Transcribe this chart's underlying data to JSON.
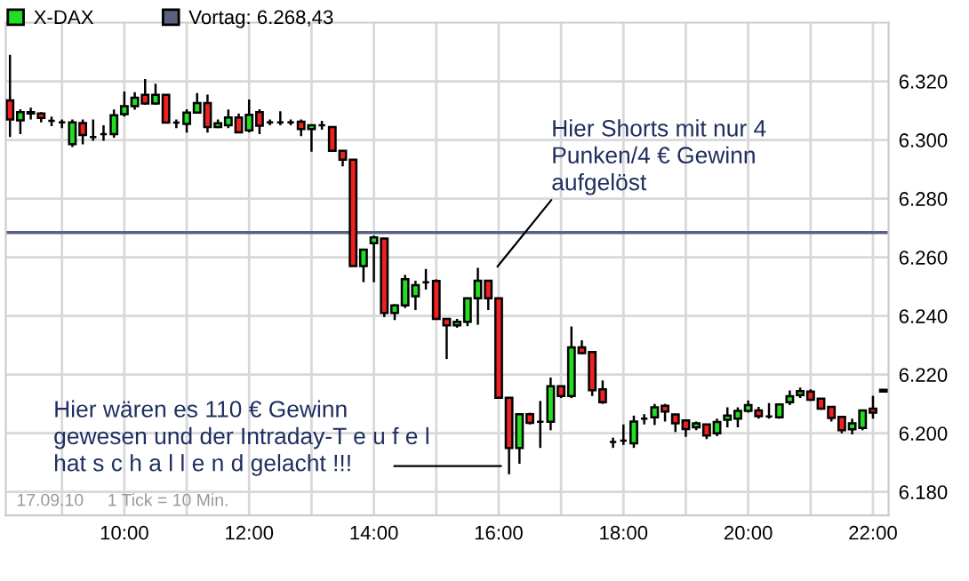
{
  "chart_data": {
    "type": "candlestick",
    "x": [
      8.1667,
      8.3333,
      8.5,
      8.6667,
      8.8333,
      9.0,
      9.1667,
      9.3333,
      9.5,
      9.6667,
      9.8333,
      10.0,
      10.1667,
      10.3333,
      10.5,
      10.6667,
      10.8333,
      11.0,
      11.1667,
      11.3333,
      11.5,
      11.6667,
      11.8333,
      12.0,
      12.1667,
      12.3333,
      12.5,
      12.6667,
      12.8333,
      13.0,
      13.1667,
      13.3333,
      13.5,
      13.6667,
      13.8333,
      14.0,
      14.1667,
      14.3333,
      14.5,
      14.6667,
      14.8333,
      15.0,
      15.1667,
      15.3333,
      15.5,
      15.6667,
      15.8333,
      16.0,
      16.1667,
      16.3333,
      16.5,
      16.6667,
      16.8333,
      17.0,
      17.1667,
      17.3333,
      17.5,
      17.6667,
      17.8333,
      18.0,
      18.1667,
      18.3333,
      18.5,
      18.6667,
      18.8333,
      19.0,
      19.1667,
      19.3333,
      19.5,
      19.6667,
      19.8333,
      20.0,
      20.1667,
      20.3333,
      20.5,
      20.6667,
      20.8333,
      21.0,
      21.1667,
      21.3333,
      21.5,
      21.6667,
      21.8333,
      22.0,
      22.1667
    ],
    "series": [
      {
        "name": "X-DAX",
        "color": "#22dd22",
        "ohlc": [
          [
            6313.5,
            6329,
            6301,
            6307
          ],
          [
            6306.7,
            6310.5,
            6302,
            6309.5
          ],
          [
            6309,
            6311,
            6307,
            6309.5
          ],
          [
            6309,
            6309.5,
            6306,
            6307.5
          ],
          [
            6306.5,
            6308,
            6304.7,
            6306.5
          ],
          [
            6306,
            6307,
            6304,
            6306
          ],
          [
            6298.6,
            6307,
            6297.6,
            6306
          ],
          [
            6305.8,
            6307,
            6298.5,
            6301.7
          ],
          [
            6301,
            6307,
            6299.7,
            6301
          ],
          [
            6302,
            6305,
            6299.7,
            6302
          ],
          [
            6302,
            6310.4,
            6300.8,
            6308.4
          ],
          [
            6308.8,
            6316.5,
            6308,
            6311.5
          ],
          [
            6311.5,
            6316.3,
            6310.3,
            6314.4
          ],
          [
            6315.4,
            6320.8,
            6312,
            6312.4
          ],
          [
            6312.4,
            6319.2,
            6312,
            6315.4
          ],
          [
            6315.4,
            6315.4,
            6305.9,
            6305.9
          ],
          [
            6305.9,
            6307,
            6304,
            6305.9
          ],
          [
            6305.5,
            6310.5,
            6302.5,
            6309.3
          ],
          [
            6309.3,
            6316,
            6309,
            6312.6
          ],
          [
            6312.6,
            6315.5,
            6302.5,
            6304.4
          ],
          [
            6304.4,
            6307,
            6304,
            6305.7
          ],
          [
            6305,
            6310.4,
            6304,
            6307.7
          ],
          [
            6307.7,
            6309,
            6302.4,
            6302.6
          ],
          [
            6303.3,
            6313.8,
            6302.6,
            6308.6
          ],
          [
            6309.5,
            6310.5,
            6302,
            6304.9
          ],
          [
            6306,
            6307,
            6305,
            6306
          ],
          [
            6306,
            6309.8,
            6305,
            6306
          ],
          [
            6306,
            6307,
            6305,
            6306
          ],
          [
            6306.2,
            6307,
            6301.3,
            6303.7
          ],
          [
            6303.7,
            6305,
            6296,
            6305
          ],
          [
            6305,
            6306.5,
            6303.5,
            6305
          ],
          [
            6304.4,
            6304.4,
            6296,
            6296.3
          ],
          [
            6296.3,
            6296.3,
            6291,
            6293.3
          ],
          [
            6293.3,
            6293.3,
            6257,
            6257
          ],
          [
            6257,
            6262.6,
            6251.5,
            6262.6
          ],
          [
            6264.8,
            6267.4,
            6251.5,
            6266.8
          ],
          [
            6266.4,
            6266.4,
            6239.6,
            6241
          ],
          [
            6241,
            6244,
            6238.6,
            6243.6
          ],
          [
            6243.6,
            6254,
            6242.7,
            6252.5
          ],
          [
            6246.7,
            6252,
            6242,
            6250.5
          ],
          [
            6251.5,
            6256,
            6249,
            6251.5
          ],
          [
            6251.9,
            6252.5,
            6239,
            6239
          ],
          [
            6239,
            6239,
            6225.3,
            6236.8
          ],
          [
            6236.8,
            6239,
            6236,
            6238
          ],
          [
            6238,
            6246,
            6236.5,
            6246
          ],
          [
            6246,
            6256.4,
            6237,
            6252
          ],
          [
            6252,
            6252,
            6242,
            6246
          ],
          [
            6246,
            6246,
            6212,
            6212.1
          ],
          [
            6212.1,
            6212.1,
            6186,
            6195
          ],
          [
            6195,
            6206.5,
            6189.6,
            6206.5
          ],
          [
            6206.5,
            6207,
            6203,
            6203.5
          ],
          [
            6203.9,
            6211,
            6195,
            6203.9
          ],
          [
            6203.9,
            6219,
            6201,
            6216
          ],
          [
            6216,
            6216,
            6212,
            6212.7
          ],
          [
            6212.7,
            6236.4,
            6212,
            6229.3
          ],
          [
            6229.3,
            6231.7,
            6227,
            6227.3
          ],
          [
            6227.7,
            6227.7,
            6212.7,
            6214.7
          ],
          [
            6215,
            6218,
            6210,
            6210.6
          ],
          [
            6197,
            6198.5,
            6195,
            6197
          ],
          [
            6197.5,
            6203,
            6196,
            6197.5
          ],
          [
            6196.6,
            6206,
            6195,
            6204
          ],
          [
            6205,
            6206.5,
            6203,
            6205
          ],
          [
            6205.4,
            6210,
            6202.8,
            6208.8
          ],
          [
            6209.4,
            6210,
            6204,
            6207.4
          ],
          [
            6206.4,
            6206.4,
            6200.4,
            6203.4
          ],
          [
            6204.4,
            6204.4,
            6198.8,
            6201.4
          ],
          [
            6202,
            6204,
            6201,
            6203.4
          ],
          [
            6203,
            6203,
            6198,
            6199.2
          ],
          [
            6200,
            6205,
            6199,
            6203.8
          ],
          [
            6204.6,
            6208.8,
            6202,
            6206
          ],
          [
            6205,
            6208.8,
            6202,
            6207.6
          ],
          [
            6207.6,
            6211.2,
            6207,
            6209.6
          ],
          [
            6207.8,
            6209,
            6205,
            6205.8
          ],
          [
            6205.7,
            6210.3,
            6205,
            6205.7
          ],
          [
            6205.4,
            6210,
            6205,
            6209.8
          ],
          [
            6210.6,
            6214.6,
            6209.6,
            6212.6
          ],
          [
            6213,
            6215.6,
            6212,
            6214.4
          ],
          [
            6214.2,
            6215,
            6211,
            6211.4
          ],
          [
            6211.8,
            6212,
            6208,
            6208.4
          ],
          [
            6209,
            6209,
            6204,
            6205.2
          ],
          [
            6205.6,
            6205.6,
            6200,
            6201
          ],
          [
            6201.3,
            6205,
            6199.6,
            6203.4
          ],
          [
            6201.8,
            6208,
            6201,
            6207.8
          ],
          [
            6208.4,
            6212.8,
            6205,
            6207
          ],
          [
            6214.2,
            6214.8,
            6214.2,
            6214.8
          ]
        ],
        "colors": [
          "#ee2222",
          "#22dd22",
          "#22dd22",
          "#ee2222",
          "#000000",
          "#000000",
          "#22dd22",
          "#ee2222",
          "#000000",
          "#000000",
          "#22dd22",
          "#22dd22",
          "#22dd22",
          "#ee2222",
          "#22dd22",
          "#ee2222",
          "#000000",
          "#22dd22",
          "#22dd22",
          "#ee2222",
          "#22dd22",
          "#22dd22",
          "#ee2222",
          "#22dd22",
          "#ee2222",
          "#000000",
          "#000000",
          "#000000",
          "#ee2222",
          "#22dd22",
          "#000000",
          "#ee2222",
          "#ee2222",
          "#ee2222",
          "#22dd22",
          "#22dd22",
          "#ee2222",
          "#22dd22",
          "#22dd22",
          "#22dd22",
          "#000000",
          "#ee2222",
          "#ee2222",
          "#22dd22",
          "#22dd22",
          "#22dd22",
          "#ee2222",
          "#ee2222",
          "#ee2222",
          "#22dd22",
          "#ee2222",
          "#000000",
          "#22dd22",
          "#ee2222",
          "#22dd22",
          "#ee2222",
          "#ee2222",
          "#ee2222",
          "#000000",
          "#000000",
          "#22dd22",
          "#000000",
          "#22dd22",
          "#ee2222",
          "#ee2222",
          "#ee2222",
          "#22dd22",
          "#ee2222",
          "#22dd22",
          "#22dd22",
          "#22dd22",
          "#22dd22",
          "#ee2222",
          "#000000",
          "#22dd22",
          "#22dd22",
          "#22dd22",
          "#ee2222",
          "#ee2222",
          "#ee2222",
          "#ee2222",
          "#22dd22",
          "#22dd22",
          "#ee2222",
          "#000000"
        ]
      }
    ],
    "xlim": [
      8.1,
      22.25
    ],
    "xticks": [
      {
        "value": 9,
        "label": null
      },
      {
        "value": 10,
        "label": "10:00"
      },
      {
        "value": 11,
        "label": null
      },
      {
        "value": 12,
        "label": "12:00"
      },
      {
        "value": 13,
        "label": null
      },
      {
        "value": 14,
        "label": "14:00"
      },
      {
        "value": 15,
        "label": null
      },
      {
        "value": 16,
        "label": "16:00"
      },
      {
        "value": 17,
        "label": null
      },
      {
        "value": 18,
        "label": "18:00"
      },
      {
        "value": 19,
        "label": null
      },
      {
        "value": 20,
        "label": "20:00"
      },
      {
        "value": 21,
        "label": null
      },
      {
        "value": 22,
        "label": "22:00"
      }
    ],
    "ylim": [
      6172,
      6340
    ],
    "yticks": [
      {
        "value": 6180,
        "label": "6.180"
      },
      {
        "value": 6200,
        "label": "6.200"
      },
      {
        "value": 6220,
        "label": "6.220"
      },
      {
        "value": 6240,
        "label": "6.240"
      },
      {
        "value": 6260,
        "label": "6.260"
      },
      {
        "value": 6280,
        "label": "6.280"
      },
      {
        "value": 6300,
        "label": "6.300"
      },
      {
        "value": 6320,
        "label": "6.320"
      }
    ],
    "grid": true,
    "legend": "top left",
    "ref_lines": [
      {
        "axis": "y",
        "value": 6268.43,
        "label": "Vortag: 6.268,43",
        "color": "#5a6080"
      }
    ],
    "annotations": [
      "Hier Shorts mit nur 4\nPunken/4 € Gewinn\naufgelöst",
      "Hier wären es 110 € Gewinn\ngewesen und der Intraday-T e u f e l\nhat s c h a l l e n d gelacht !!!",
      "17.09.10",
      "1 Tick = 10 Min."
    ]
  }
}
